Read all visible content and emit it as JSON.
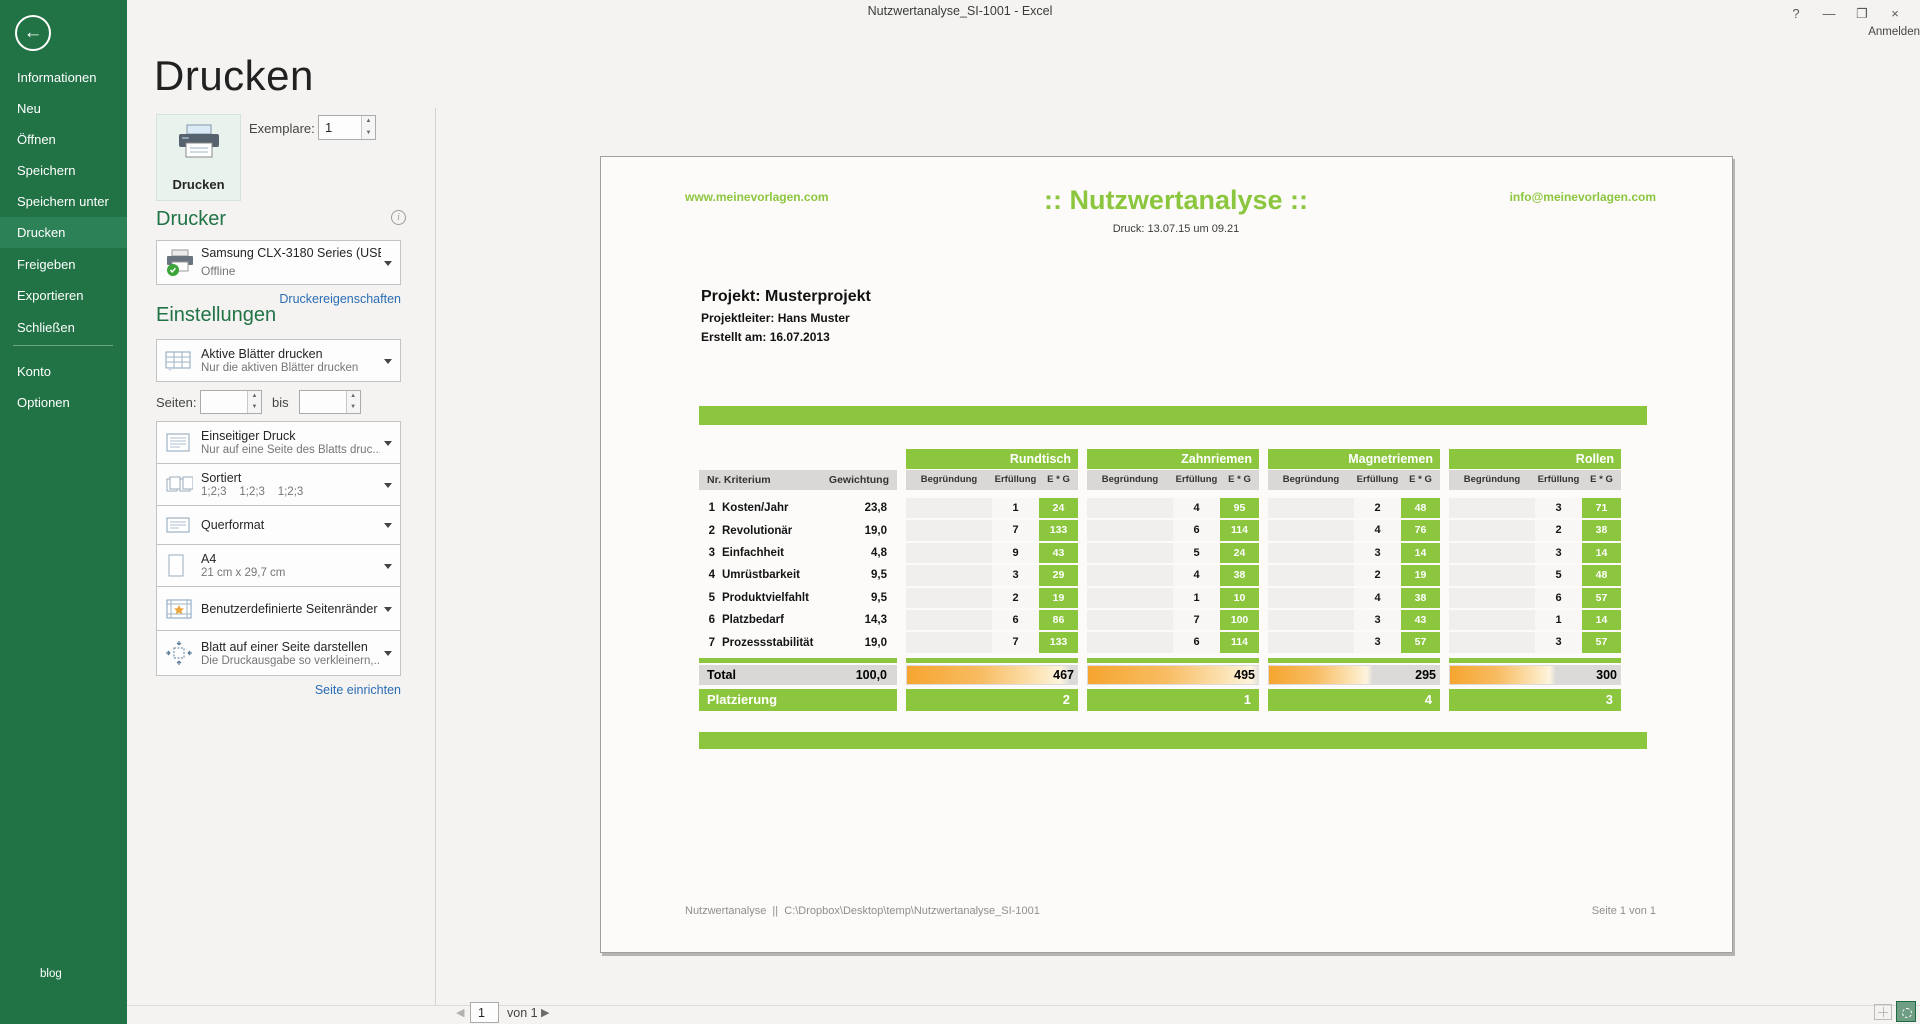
{
  "titlebar": {
    "title": "Nutzwertanalyse_SI-1001 - Excel",
    "help": "?",
    "minimize": "—",
    "restore": "❐",
    "close": "×",
    "signin_label": "Anmelden"
  },
  "sidebar": {
    "items": [
      {
        "label": "Informationen"
      },
      {
        "label": "Neu"
      },
      {
        "label": "Öffnen"
      },
      {
        "label": "Speichern"
      },
      {
        "label": "Speichern unter"
      },
      {
        "label": "Drucken"
      },
      {
        "label": "Freigeben"
      },
      {
        "label": "Exportieren"
      },
      {
        "label": "Schließen"
      },
      {
        "label": "Konto"
      },
      {
        "label": "Optionen"
      }
    ],
    "selected": "Drucken",
    "blog_label": "blog"
  },
  "print": {
    "page_title": "Drucken",
    "button_label": "Drucken",
    "copies_label": "Exemplare:",
    "copies_value": "1"
  },
  "printer": {
    "heading": "Drucker",
    "name": "Samsung CLX-3180 Series (USB0...",
    "status": "Offline",
    "properties_link": "Druckereigenschaften"
  },
  "settings": {
    "heading": "Einstellungen",
    "seiten_label": "Seiten:",
    "bis_label": "bis",
    "rows": [
      {
        "title": "Aktive Blätter drucken",
        "subtitle": "Nur die aktiven Blätter drucken"
      },
      {
        "title": "Einseitiger Druck",
        "subtitle": "Nur auf eine Seite des Blatts druc..."
      },
      {
        "title": "Sortiert",
        "subtitle": "1;2;3    1;2;3    1;2;3"
      },
      {
        "title": "Querformat",
        "subtitle": ""
      },
      {
        "title": "A4",
        "subtitle": "21 cm x 29,7 cm"
      },
      {
        "title": "Benutzerdefinierte Seitenränder",
        "subtitle": ""
      },
      {
        "title": "Blatt auf einer Seite darstellen",
        "subtitle": "Die Druckausgabe so verkleinern,..."
      }
    ],
    "setup_link": "Seite einrichten"
  },
  "pager": {
    "prev": "◀",
    "next": "▶",
    "current_page": "1",
    "of_label": "von 1"
  },
  "preview": {
    "website": "www.meinevorlagen.com",
    "email": "info@meinevorlagen.com",
    "title": ":: Nutzwertanalyse ::",
    "print_stamp": "Druck: 13.07.15 um 09.21",
    "project": "Projekt: Musterprojekt",
    "project_lead": "Projektleiter: Hans Muster",
    "created": "Erstellt am: 16.07.2013",
    "footer_left": "Nutzwertanalyse  ||  C:\\Dropbox\\Desktop\\temp\\Nutzwertanalyse_SI-1001",
    "footer_right": "Seite 1 von 1",
    "table": {
      "left_header": {
        "nr_kriterium": "Nr. Kriterium",
        "gewichtung": "Gewichtung"
      },
      "sub_headers": [
        "Begründung",
        "Erfüllung",
        "E * G"
      ],
      "criteria": [
        {
          "nr": 1,
          "name": "Kosten/Jahr",
          "weight": "23,8"
        },
        {
          "nr": 2,
          "name": "Revolutionär",
          "weight": "19,0"
        },
        {
          "nr": 3,
          "name": "Einfachheit",
          "weight": "4,8"
        },
        {
          "nr": 4,
          "name": "Umrüstbarkeit",
          "weight": "9,5"
        },
        {
          "nr": 5,
          "name": "Produktvielfahlt",
          "weight": "9,5"
        },
        {
          "nr": 6,
          "name": "Platzbedarf",
          "weight": "14,3"
        },
        {
          "nr": 7,
          "name": "Prozessstabilität",
          "weight": "19,0"
        }
      ],
      "groups": [
        {
          "name": "Rundtisch",
          "erfuellung": [
            1,
            7,
            9,
            3,
            2,
            6,
            7
          ],
          "eg": [
            24,
            133,
            43,
            29,
            19,
            86,
            133
          ],
          "total": 467,
          "rank": 2,
          "bar_pct": 94
        },
        {
          "name": "Zahnriemen",
          "erfuellung": [
            4,
            6,
            5,
            4,
            1,
            7,
            6
          ],
          "eg": [
            95,
            114,
            24,
            38,
            10,
            100,
            114
          ],
          "total": 495,
          "rank": 1,
          "bar_pct": 100
        },
        {
          "name": "Magnetriemen",
          "erfuellung": [
            2,
            4,
            3,
            2,
            4,
            3,
            3
          ],
          "eg": [
            48,
            76,
            14,
            19,
            38,
            43,
            57
          ],
          "total": 295,
          "rank": 4,
          "bar_pct": 60
        },
        {
          "name": "Rollen",
          "erfuellung": [
            3,
            2,
            3,
            5,
            6,
            1,
            3
          ],
          "eg": [
            71,
            38,
            14,
            48,
            57,
            14,
            57
          ],
          "total": 300,
          "rank": 3,
          "bar_pct": 61
        }
      ],
      "total_label": "Total",
      "total_weight": "100,0",
      "rank_label": "Platzierung"
    }
  },
  "colors": {
    "excel_green": "#217346",
    "sidebar_selected": "#2d8157",
    "template_green": "#8cc63e",
    "databar_orange": "#f6a52f",
    "header_gray": "#d9d8d6",
    "link_blue": "#2a6db5"
  }
}
